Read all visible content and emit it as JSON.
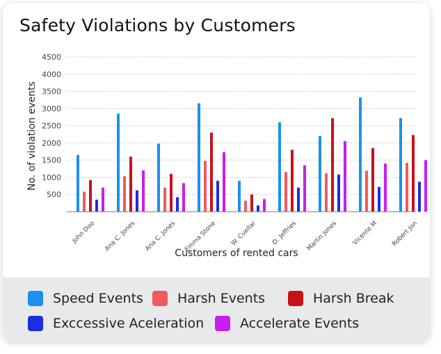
{
  "chart_data": {
    "type": "bar",
    "title": "Safety Violations by Customers",
    "xlabel": "Customers of rented cars",
    "ylabel": "No. of violation events",
    "ylim": [
      0,
      4500
    ],
    "yticks": [
      "500",
      "1000",
      "1500",
      "2000",
      "2500",
      "3000",
      "3500",
      "4000",
      "4500"
    ],
    "grid": true,
    "legend_position": "bottom",
    "categories": [
      "John Doo",
      "Ana C. Jones",
      "Ana C. Jones",
      "Emma Stone",
      "W. Cuellar",
      "D. Jeffries",
      "Martin Jones",
      "Vicente M",
      "Robert Jon"
    ],
    "series": [
      {
        "name": "Speed Events",
        "color": "#1a91ee",
        "values": [
          1650,
          2850,
          1980,
          3150,
          900,
          2600,
          2200,
          3320,
          2720
        ]
      },
      {
        "name": "Harsh Events",
        "color": "#f05a5a",
        "values": [
          580,
          1030,
          700,
          1480,
          320,
          1150,
          1120,
          1190,
          1420
        ]
      },
      {
        "name": "Harsh Break",
        "color": "#c8121a",
        "values": [
          920,
          1600,
          1100,
          2300,
          500,
          1800,
          2720,
          1850,
          2230
        ]
      },
      {
        "name": "Exccessive Aceleration",
        "color": "#1b2ee0",
        "values": [
          350,
          620,
          420,
          900,
          180,
          700,
          1080,
          720,
          870
        ]
      },
      {
        "name": "Accelerate Events",
        "color": "#c81ef0",
        "values": [
          700,
          1200,
          830,
          1730,
          370,
          1350,
          2050,
          1400,
          1500
        ]
      }
    ]
  }
}
